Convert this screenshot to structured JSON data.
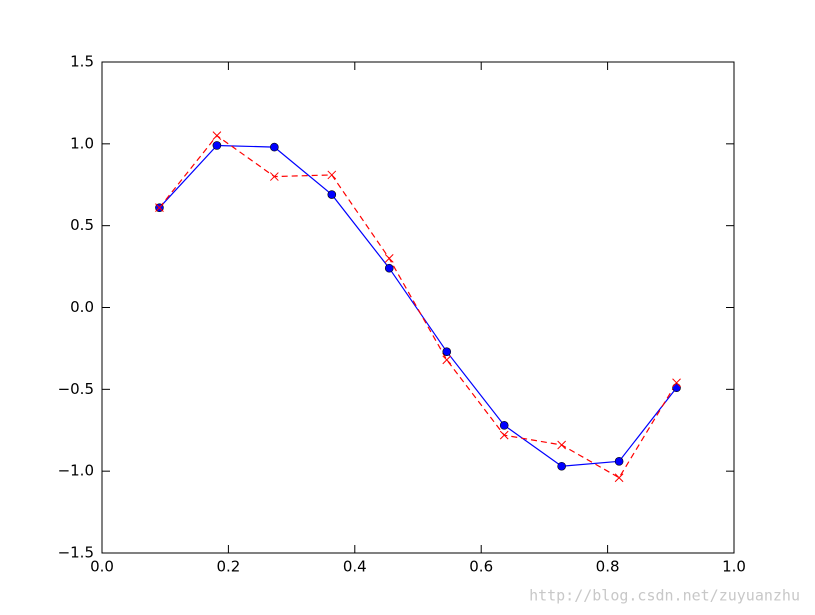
{
  "chart_data": {
    "type": "line",
    "x": [
      0.0909,
      0.1818,
      0.2727,
      0.3636,
      0.4545,
      0.5455,
      0.6364,
      0.7273,
      0.8182,
      0.9091
    ],
    "series": [
      {
        "color": "#0000ff",
        "linestyle": "solid",
        "marker": "circle",
        "values": [
          0.61,
          0.99,
          0.98,
          0.69,
          0.24,
          -0.27,
          -0.72,
          -0.97,
          -0.94,
          -0.49
        ]
      },
      {
        "color": "#ff0000",
        "linestyle": "dashed",
        "marker": "x",
        "values": [
          0.61,
          1.05,
          0.8,
          0.81,
          0.3,
          -0.32,
          -0.78,
          -0.84,
          -1.04,
          -0.46
        ]
      }
    ],
    "xlim": [
      0,
      1
    ],
    "ylim": [
      -1.5,
      1.5
    ],
    "xticks": [
      {
        "value": 0,
        "label": "0.0"
      },
      {
        "value": 0.2,
        "label": "0.2"
      },
      {
        "value": 0.4,
        "label": "0.4"
      },
      {
        "value": 0.6,
        "label": "0.6"
      },
      {
        "value": 0.8,
        "label": "0.8"
      },
      {
        "value": 1,
        "label": "1.0"
      }
    ],
    "yticks": [
      {
        "value": -1.5,
        "label": "−1.5"
      },
      {
        "value": -1,
        "label": "−1.0"
      },
      {
        "value": -0.5,
        "label": "−0.5"
      },
      {
        "value": 0,
        "label": "0.0"
      },
      {
        "value": 0.5,
        "label": "0.5"
      },
      {
        "value": 1,
        "label": "1.0"
      },
      {
        "value": 1.5,
        "label": "1.5"
      }
    ],
    "grid": false,
    "watermark": "http://blog.csdn.net/zuyuanzhu"
  }
}
